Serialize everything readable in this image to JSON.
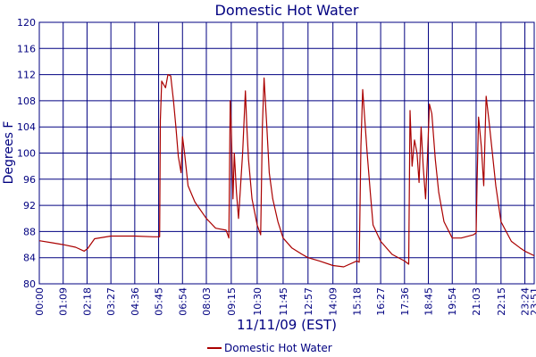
{
  "chart_data": {
    "type": "line",
    "title": "Domestic Hot Water",
    "xlabel": "11/11/09 (EST)",
    "ylabel": "Degrees F",
    "ylim": [
      80,
      120
    ],
    "yticks": [
      80,
      84,
      88,
      92,
      96,
      100,
      104,
      108,
      112,
      116,
      120
    ],
    "xlim": [
      "00:00",
      "23:51"
    ],
    "xtick_labels": [
      "00:00",
      "01:09",
      "02:18",
      "03:27",
      "04:36",
      "05:45",
      "06:54",
      "08:03",
      "09:15",
      "10:30",
      "11:45",
      "12:57",
      "14:09",
      "15:18",
      "16:27",
      "17:36",
      "18:45",
      "19:54",
      "21:03",
      "22:15",
      "23:24",
      "23:51"
    ],
    "grid": true,
    "legend": {
      "position": "bottom-center",
      "entries": [
        "Domestic Hot Water"
      ]
    },
    "colors": {
      "series": "#aa0000",
      "grid": "#000080",
      "text": "#000080",
      "background": "#ffffff"
    },
    "series": [
      {
        "name": "Domestic Hot Water",
        "points": [
          [
            "00:00",
            86.6
          ],
          [
            "00:35",
            86.3
          ],
          [
            "01:09",
            86.0
          ],
          [
            "01:45",
            85.6
          ],
          [
            "02:10",
            85.0
          ],
          [
            "02:20",
            85.4
          ],
          [
            "02:40",
            86.9
          ],
          [
            "03:27",
            87.3
          ],
          [
            "04:36",
            87.3
          ],
          [
            "05:30",
            87.2
          ],
          [
            "05:48",
            87.2
          ],
          [
            "05:50",
            105.0
          ],
          [
            "05:54",
            111.0
          ],
          [
            "06:05",
            110.0
          ],
          [
            "06:12",
            112.0
          ],
          [
            "06:20",
            111.8
          ],
          [
            "06:28",
            108.0
          ],
          [
            "06:35",
            104.0
          ],
          [
            "06:42",
            99.5
          ],
          [
            "06:50",
            97.0
          ],
          [
            "06:54",
            102.5
          ],
          [
            "07:00",
            100.0
          ],
          [
            "07:10",
            95.0
          ],
          [
            "07:30",
            92.5
          ],
          [
            "08:03",
            90.0
          ],
          [
            "08:30",
            88.5
          ],
          [
            "09:00",
            88.2
          ],
          [
            "09:08",
            87.0
          ],
          [
            "09:12",
            108.0
          ],
          [
            "09:15",
            104.0
          ],
          [
            "09:20",
            93.0
          ],
          [
            "09:24",
            100.0
          ],
          [
            "09:30",
            94.0
          ],
          [
            "09:36",
            90.0
          ],
          [
            "09:42",
            95.0
          ],
          [
            "09:48",
            100.0
          ],
          [
            "09:56",
            109.5
          ],
          [
            "10:00",
            104.0
          ],
          [
            "10:05",
            99.0
          ],
          [
            "10:15",
            93.0
          ],
          [
            "10:30",
            89.0
          ],
          [
            "10:40",
            87.5
          ],
          [
            "10:45",
            104.0
          ],
          [
            "10:50",
            111.5
          ],
          [
            "10:58",
            104.0
          ],
          [
            "11:05",
            97.0
          ],
          [
            "11:15",
            93.0
          ],
          [
            "11:30",
            89.5
          ],
          [
            "11:45",
            87.0
          ],
          [
            "12:10",
            85.5
          ],
          [
            "12:40",
            84.5
          ],
          [
            "12:57",
            84.0
          ],
          [
            "13:30",
            83.5
          ],
          [
            "14:09",
            82.8
          ],
          [
            "14:40",
            82.6
          ],
          [
            "15:18",
            83.5
          ],
          [
            "15:25",
            83.3
          ],
          [
            "15:30",
            101.0
          ],
          [
            "15:35",
            109.7
          ],
          [
            "15:40",
            106.0
          ],
          [
            "15:48",
            100.0
          ],
          [
            "15:57",
            94.0
          ],
          [
            "16:05",
            89.0
          ],
          [
            "16:27",
            86.5
          ],
          [
            "17:00",
            84.5
          ],
          [
            "17:36",
            83.5
          ],
          [
            "17:48",
            83.0
          ],
          [
            "17:52",
            106.5
          ],
          [
            "17:58",
            98.0
          ],
          [
            "18:05",
            102.0
          ],
          [
            "18:12",
            100.0
          ],
          [
            "18:18",
            95.5
          ],
          [
            "18:24",
            104.0
          ],
          [
            "18:30",
            98.0
          ],
          [
            "18:37",
            93.0
          ],
          [
            "18:42",
            99.0
          ],
          [
            "18:48",
            107.5
          ],
          [
            "18:55",
            106.0
          ],
          [
            "19:05",
            99.0
          ],
          [
            "19:15",
            94.0
          ],
          [
            "19:30",
            89.5
          ],
          [
            "19:54",
            87.0
          ],
          [
            "20:20",
            87.0
          ],
          [
            "20:55",
            87.5
          ],
          [
            "21:03",
            87.8
          ],
          [
            "21:06",
            96.0
          ],
          [
            "21:10",
            105.5
          ],
          [
            "21:18",
            101.0
          ],
          [
            "21:25",
            95.0
          ],
          [
            "21:32",
            108.7
          ],
          [
            "21:40",
            105.0
          ],
          [
            "21:48",
            101.0
          ],
          [
            "22:00",
            95.0
          ],
          [
            "22:15",
            89.5
          ],
          [
            "22:45",
            86.5
          ],
          [
            "23:10",
            85.5
          ],
          [
            "23:24",
            85.0
          ],
          [
            "23:51",
            84.3
          ]
        ]
      }
    ]
  }
}
